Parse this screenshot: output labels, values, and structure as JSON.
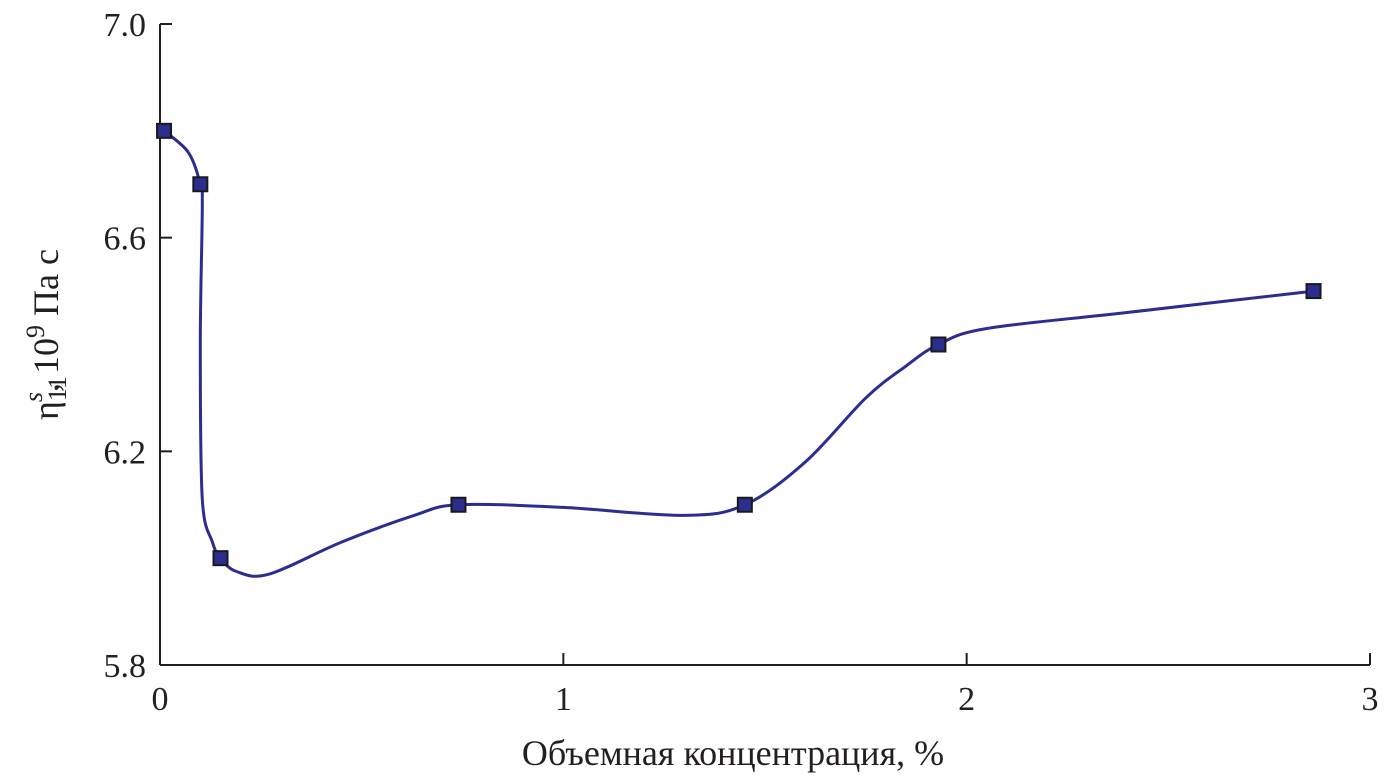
{
  "chart_data": {
    "type": "line",
    "xlabel": "Объемная концентрация, %",
    "ylabel": {
      "symbol": "η",
      "superscript": "s",
      "subscript": "11",
      "unit_prefix": ", 10",
      "unit_exponent": "9",
      "unit_suffix": " Па с"
    },
    "xlim": [
      0,
      3
    ],
    "ylim": [
      5.8,
      7.0
    ],
    "x_ticks": [
      0,
      1,
      2,
      3
    ],
    "x_tick_labels": [
      "0",
      "1",
      "2",
      "3"
    ],
    "y_ticks": [
      5.8,
      6.2,
      6.6,
      7.0
    ],
    "y_tick_labels": [
      "5.8",
      "6.2",
      "6.6",
      "7.0"
    ],
    "grid": false,
    "series": [
      {
        "x": [
          0.01,
          0.1,
          0.15,
          0.74,
          1.45,
          1.93,
          2.86
        ],
        "y": [
          6.8,
          6.7,
          6.0,
          6.1,
          6.1,
          6.4,
          6.5
        ],
        "color": "#2b2d8f",
        "marker": "square",
        "marker_color": "#2b2d8f"
      }
    ],
    "curve": {
      "x": [
        0.01,
        0.07,
        0.1,
        0.105,
        0.1,
        0.105,
        0.13,
        0.15,
        0.19,
        0.27,
        0.45,
        0.63,
        0.74,
        1.0,
        1.3,
        1.45,
        1.6,
        1.75,
        1.85,
        1.93,
        2.05,
        2.4,
        2.86
      ],
      "y": [
        6.8,
        6.76,
        6.7,
        6.66,
        6.4,
        6.11,
        6.03,
        6.0,
        5.975,
        5.97,
        6.03,
        6.08,
        6.1,
        6.095,
        6.08,
        6.1,
        6.18,
        6.3,
        6.36,
        6.4,
        6.43,
        6.46,
        6.5
      ]
    }
  }
}
